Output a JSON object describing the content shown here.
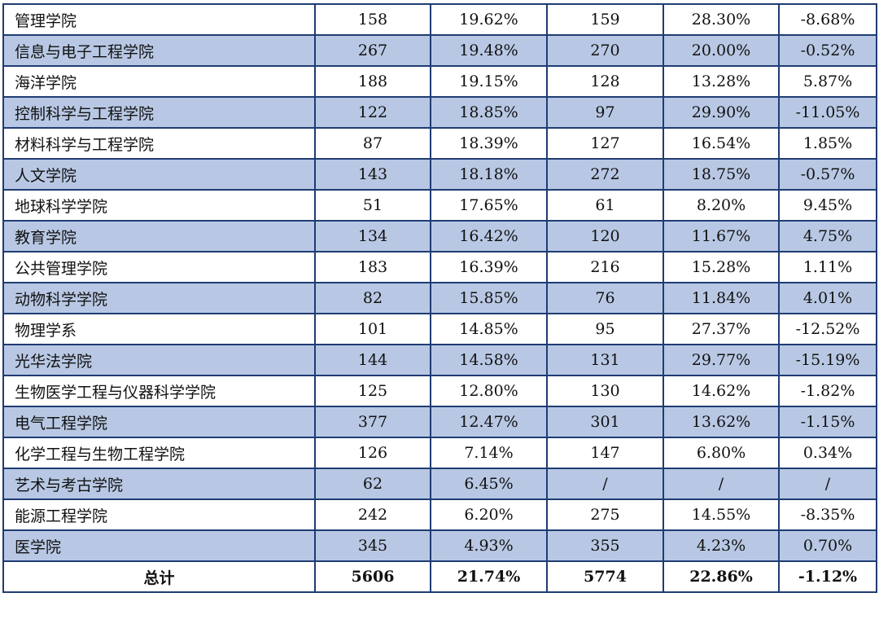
{
  "table": {
    "rows": [
      [
        "管理学院",
        "158",
        "19.62%",
        "159",
        "28.30%",
        "-8.68%"
      ],
      [
        "信息与电子工程学院",
        "267",
        "19.48%",
        "270",
        "20.00%",
        "-0.52%"
      ],
      [
        "海洋学院",
        "188",
        "19.15%",
        "128",
        "13.28%",
        "5.87%"
      ],
      [
        "控制科学与工程学院",
        "122",
        "18.85%",
        "97",
        "29.90%",
        "-11.05%"
      ],
      [
        "材料科学与工程学院",
        "87",
        "18.39%",
        "127",
        "16.54%",
        "1.85%"
      ],
      [
        "人文学院",
        "143",
        "18.18%",
        "272",
        "18.75%",
        "-0.57%"
      ],
      [
        "地球科学学院",
        "51",
        "17.65%",
        "61",
        "8.20%",
        "9.45%"
      ],
      [
        "教育学院",
        "134",
        "16.42%",
        "120",
        "11.67%",
        "4.75%"
      ],
      [
        "公共管理学院",
        "183",
        "16.39%",
        "216",
        "15.28%",
        "1.11%"
      ],
      [
        "动物科学学院",
        "82",
        "15.85%",
        "76",
        "11.84%",
        "4.01%"
      ],
      [
        "物理学系",
        "101",
        "14.85%",
        "95",
        "27.37%",
        "-12.52%"
      ],
      [
        "光华法学院",
        "144",
        "14.58%",
        "131",
        "29.77%",
        "-15.19%"
      ],
      [
        "生物医学工程与仪器科学学院",
        "125",
        "12.80%",
        "130",
        "14.62%",
        "-1.82%"
      ],
      [
        "电气工程学院",
        "377",
        "12.47%",
        "301",
        "13.62%",
        "-1.15%"
      ],
      [
        "化学工程与生物工程学院",
        "126",
        "7.14%",
        "147",
        "6.80%",
        "0.34%"
      ],
      [
        "艺术与考古学院",
        "62",
        "6.45%",
        "/",
        "/",
        "/"
      ],
      [
        "能源工程学院",
        "242",
        "6.20%",
        "275",
        "14.55%",
        "-8.35%"
      ],
      [
        "医学院",
        "345",
        "4.93%",
        "355",
        "4.23%",
        "0.70%"
      ]
    ],
    "total": [
      "总计",
      "5606",
      "21.74%",
      "5774",
      "22.86%",
      "-1.12%"
    ]
  }
}
